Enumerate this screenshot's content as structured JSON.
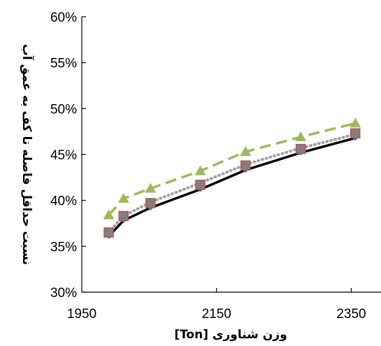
{
  "chart_data": {
    "type": "line",
    "xlabel": "[Ton] وزن شناوری",
    "ylabel": "نسبت حداقل فاصله تا کف به عمق آب",
    "xlim": [
      1950,
      2390
    ],
    "ylim": [
      0.3,
      0.6
    ],
    "x_ticks": [
      1950,
      2150,
      2350
    ],
    "x_tick_labels": [
      "1950",
      "2150",
      "2350"
    ],
    "y_ticks": [
      0.3,
      0.35,
      0.4,
      0.45,
      0.5,
      0.55,
      0.6
    ],
    "y_tick_labels": [
      "30%",
      "35%",
      "40%",
      "45%",
      "50%",
      "55%",
      "60%"
    ],
    "grid": false,
    "legend": "none",
    "series": [
      {
        "style": "solid-black-diamond",
        "color": "#000000",
        "marker_color": "#4472c4",
        "x": [
          1990,
          2012,
          2052,
          2126,
          2193,
          2275,
          2356
        ],
        "y": [
          0.361,
          0.378,
          0.392,
          0.412,
          0.433,
          0.452,
          0.468
        ]
      },
      {
        "style": "dotted-grey",
        "color": "#a0a0a0",
        "x": [
          1990,
          2012,
          2052,
          2126,
          2193,
          2275,
          2356
        ],
        "y": [
          0.365,
          0.383,
          0.398,
          0.419,
          0.439,
          0.457,
          0.472
        ]
      },
      {
        "style": "square-red-edge",
        "color": "#808080",
        "marker_color": "#808080",
        "marker_edge": "#c0504d",
        "x": [
          1990,
          2012,
          2052,
          2126,
          2193,
          2275,
          2356
        ],
        "y": [
          0.365,
          0.383,
          0.397,
          0.417,
          0.438,
          0.456,
          0.473
        ]
      },
      {
        "style": "dashed-green-triangle",
        "color": "#9bbb59",
        "x": [
          1990,
          2012,
          2052,
          2126,
          2193,
          2275,
          2356
        ],
        "y": [
          0.384,
          0.402,
          0.413,
          0.432,
          0.453,
          0.469,
          0.484
        ]
      }
    ]
  }
}
